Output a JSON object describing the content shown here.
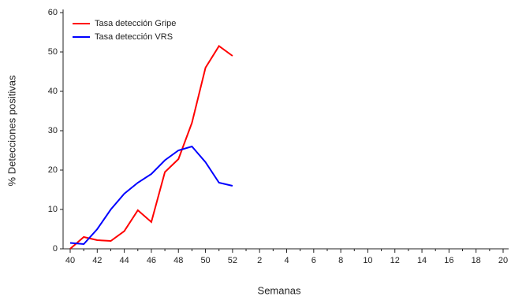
{
  "chart_data": {
    "type": "line",
    "xlabel": "Semanas",
    "ylabel": "% Detecciones positivas",
    "categories": [
      "40",
      null,
      "42",
      null,
      "44",
      null,
      "46",
      null,
      "48",
      null,
      "50",
      null,
      "52",
      null,
      "2",
      null,
      "4",
      null,
      "6",
      null,
      "8",
      null,
      "10",
      null,
      "12",
      null,
      "14",
      null,
      "16",
      null,
      "18",
      null,
      "20"
    ],
    "series": [
      {
        "name": "Tasa detección Gripe",
        "color": "#ff0000",
        "values": [
          0,
          3,
          2.2,
          2,
          4.5,
          9.8,
          6.8,
          19.5,
          22.8,
          32,
          46,
          51.5,
          49,
          null,
          null,
          null,
          null,
          null,
          null,
          null,
          null,
          null,
          null,
          null,
          null,
          null,
          null,
          null,
          null,
          null,
          null,
          null,
          null
        ]
      },
      {
        "name": "Tasa detección VRS",
        "color": "#0000ff",
        "values": [
          1.5,
          1.2,
          5,
          10,
          14,
          16.8,
          19,
          22.5,
          25,
          26,
          22,
          16.8,
          16,
          null,
          null,
          null,
          null,
          null,
          null,
          null,
          null,
          null,
          null,
          null,
          null,
          null,
          null,
          null,
          null,
          null,
          null,
          null,
          null
        ]
      }
    ],
    "ylim": [
      0,
      60
    ],
    "yticks": [
      0,
      10,
      20,
      30,
      40,
      50,
      60
    ],
    "legend": "upper left"
  }
}
